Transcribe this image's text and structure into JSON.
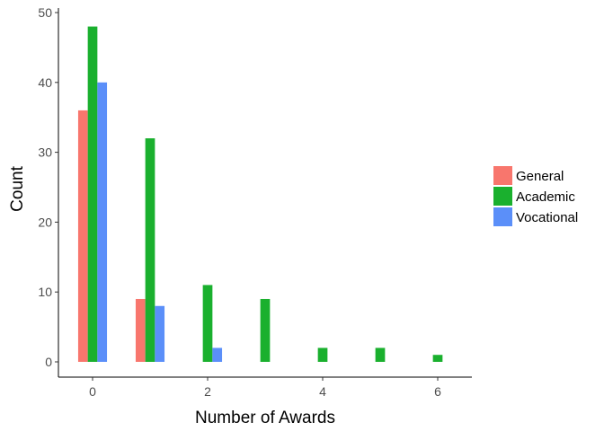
{
  "chart_data": {
    "type": "bar",
    "xlabel": "Number of Awards",
    "ylabel": "Count",
    "x": [
      0,
      1,
      2,
      3,
      4,
      5,
      6
    ],
    "xticks": [
      0,
      2,
      4,
      6
    ],
    "yticks": [
      0,
      10,
      20,
      30,
      40,
      50
    ],
    "xlim": [
      -0.6,
      6.6
    ],
    "ylim": [
      0,
      50
    ],
    "grid": false,
    "legend_position": "right",
    "series": [
      {
        "name": "General",
        "color": "#F8766D",
        "values": [
          36,
          9,
          0,
          0,
          0,
          0,
          0
        ]
      },
      {
        "name": "Academic",
        "color": "#1AB02E",
        "values": [
          48,
          32,
          11,
          9,
          2,
          2,
          1
        ]
      },
      {
        "name": "Vocational",
        "color": "#5B8FF9",
        "values": [
          40,
          8,
          2,
          0,
          0,
          0,
          0
        ]
      }
    ]
  }
}
